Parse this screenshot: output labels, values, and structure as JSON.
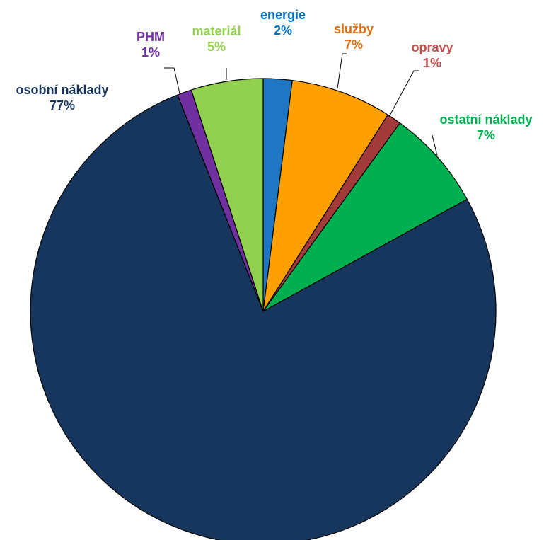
{
  "chart_data": {
    "type": "pie",
    "title": "",
    "slices": [
      {
        "name": "energie",
        "label": "2%",
        "value": 2,
        "color": "#1f77c4"
      },
      {
        "name": "služby",
        "label": "7%",
        "value": 7,
        "color": "#ff9f00"
      },
      {
        "name": "opravy",
        "label": "1%",
        "value": 1,
        "color": "#a33a3a"
      },
      {
        "name": "ostatní náklady",
        "label": "7%",
        "value": 7,
        "color": "#00b050"
      },
      {
        "name": "osobní náklady",
        "label": "77%",
        "value": 77,
        "color": "#17365d"
      },
      {
        "name": "PHM",
        "label": "1%",
        "value": 1,
        "color": "#7030a0"
      },
      {
        "name": "materiál",
        "label": "5%",
        "value": 5,
        "color": "#92d050"
      }
    ],
    "label_colors": {
      "energie": "#0070c0",
      "služby": "#e36c09",
      "opravy": "#c0504d",
      "ostatní náklady": "#00b050",
      "osobní náklady": "#17365d",
      "PHM": "#7030a0",
      "materiál": "#92d050"
    },
    "start_angle_deg": 0,
    "direction": "clockwise"
  }
}
